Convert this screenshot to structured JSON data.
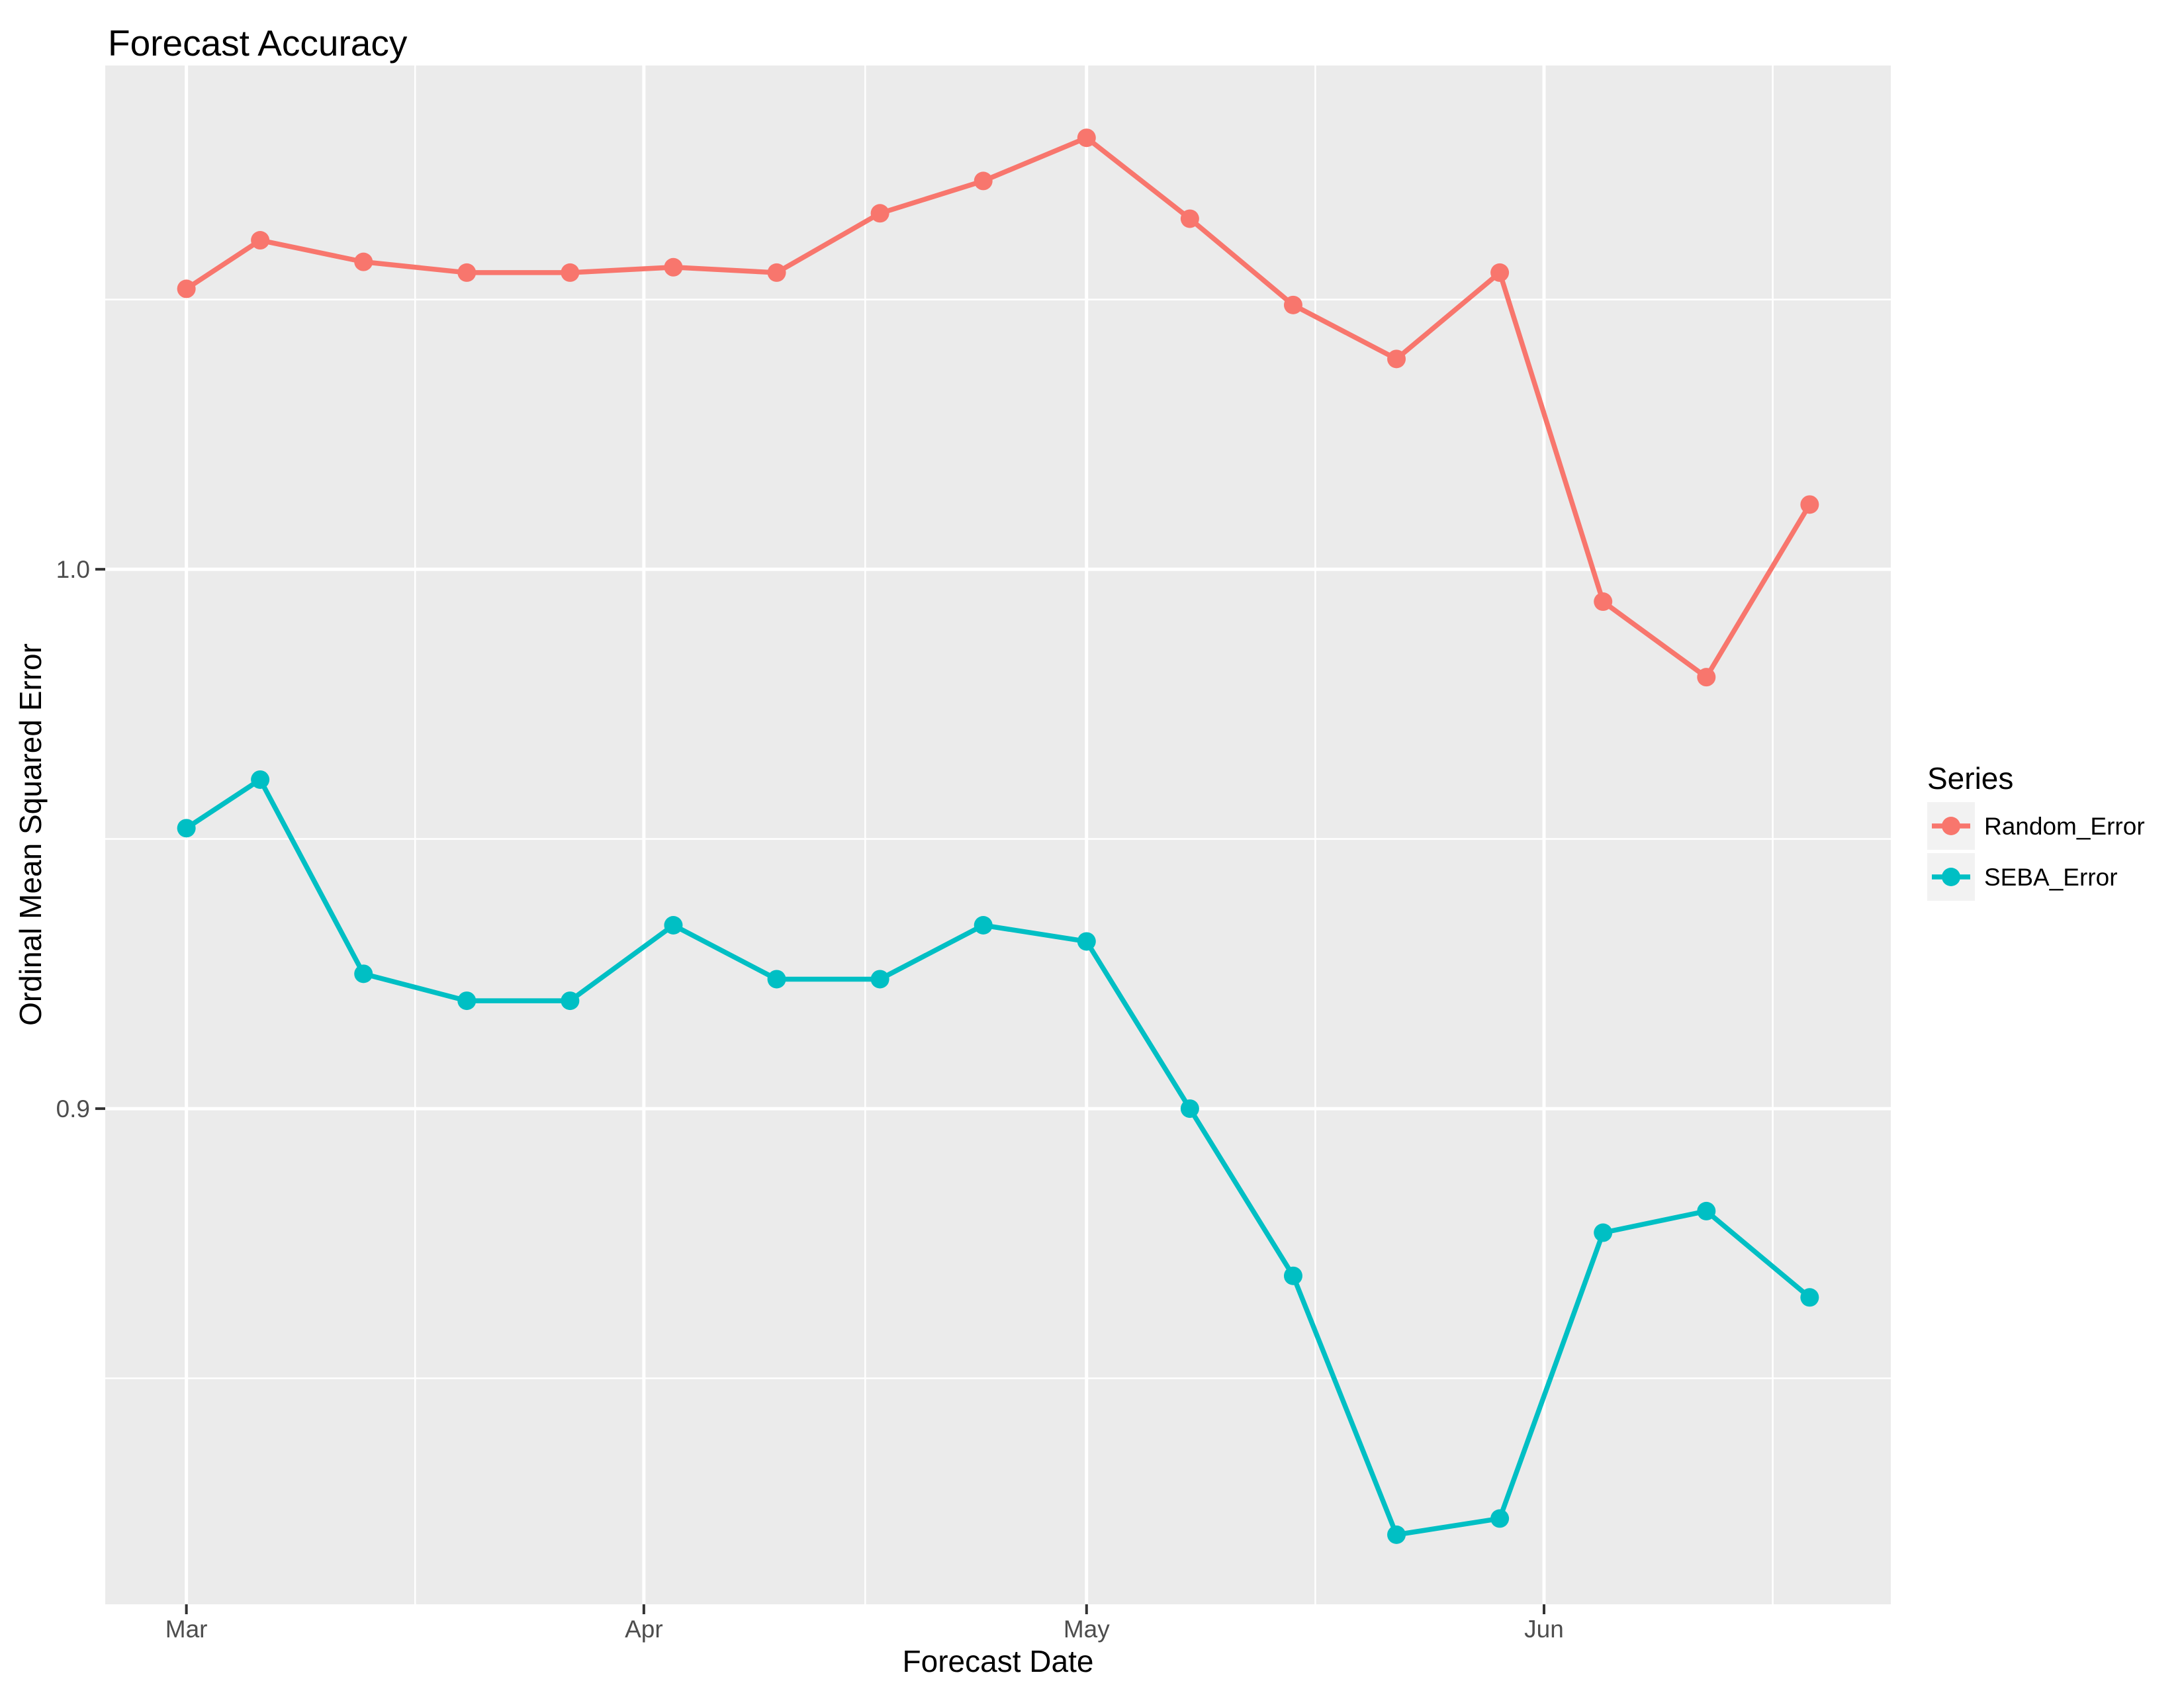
{
  "chart_data": {
    "type": "line",
    "title": "Forecast Accuracy",
    "xlabel": "Forecast Date",
    "ylabel": "Ordinal Mean Squared Error",
    "legend_title": "Series",
    "legend_position": "right",
    "grid": true,
    "panel_background": "#EBEBEB",
    "grid_color": "#FFFFFF",
    "tick_label_color": "#4D4D4D",
    "axis_tick_color": "#333333",
    "legend_key_background": "#F2F2F2",
    "x_axis": {
      "tick_labels": [
        "Mar",
        "Apr",
        "May",
        "Jun"
      ],
      "tick_day_offsets": [
        0,
        31,
        61,
        92
      ],
      "minor_day_offsets": [
        15.5,
        46,
        76.5,
        107.5
      ],
      "range_days": [
        -5.5,
        115.5
      ]
    },
    "y_axis": {
      "tick_labels": [
        "1.0",
        "0.9"
      ],
      "tick_values": [
        1.0,
        0.9
      ],
      "minor_values": [
        1.05,
        0.95,
        0.85
      ],
      "range": [
        0.8081,
        1.0934
      ]
    },
    "x": [
      "Mar 01",
      "Mar 06",
      "Mar 13",
      "Mar 20",
      "Mar 27",
      "Apr 03",
      "Apr 10",
      "Apr 17",
      "Apr 24",
      "May 01",
      "May 08",
      "May 15",
      "May 22",
      "May 29",
      "Jun 05",
      "Jun 12",
      "Jun 19"
    ],
    "x_day_offsets": [
      0,
      5,
      12,
      19,
      26,
      33,
      40,
      47,
      54,
      61,
      68,
      75,
      82,
      89,
      96,
      103,
      110
    ],
    "series": [
      {
        "name": "Random_Error",
        "color": "#F8766D",
        "values": [
          1.052,
          1.061,
          1.057,
          1.055,
          1.055,
          1.056,
          1.055,
          1.066,
          1.072,
          1.08,
          1.065,
          1.049,
          1.039,
          1.055,
          0.994,
          0.98,
          1.012
        ]
      },
      {
        "name": "SEBA_Error",
        "color": "#00BFC4",
        "values": [
          0.952,
          0.961,
          0.925,
          0.92,
          0.92,
          0.934,
          0.924,
          0.924,
          0.934,
          0.931,
          0.9,
          0.869,
          0.821,
          0.824,
          0.877,
          0.881,
          0.865
        ]
      }
    ]
  }
}
